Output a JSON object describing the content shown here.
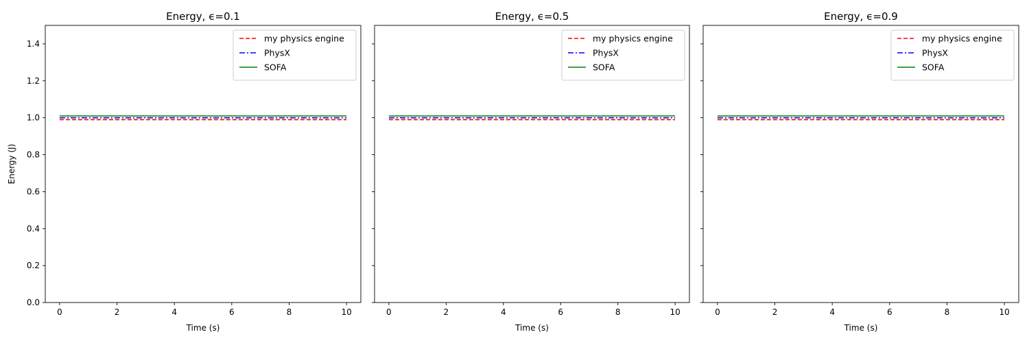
{
  "chart_data": [
    {
      "type": "line",
      "title": "Energy, ϵ=0.1",
      "xlabel": "Time (s)",
      "ylabel": "Energy (J)",
      "xlim": [
        -0.5,
        10.5
      ],
      "ylim": [
        0,
        1.5
      ],
      "xticks": [
        0,
        2,
        4,
        6,
        8,
        10
      ],
      "xtick_labels": [
        "0",
        "2",
        "4",
        "6",
        "8",
        "10"
      ],
      "yticks": [
        0.0,
        0.2,
        0.4,
        0.6,
        0.8,
        1.0,
        1.2,
        1.4
      ],
      "ytick_labels": [
        "0.0",
        "0.2",
        "0.4",
        "0.6",
        "0.8",
        "1.0",
        "1.2",
        "1.4"
      ],
      "show_yticklabels": true,
      "grid": false,
      "legend": "upper right",
      "series": [
        {
          "name": "my physics engine",
          "color": "#ff0000",
          "style": "dashed",
          "x": [
            0,
            10
          ],
          "y": [
            0.99,
            0.99
          ]
        },
        {
          "name": "PhysX",
          "color": "#0000ff",
          "style": "dashdot",
          "x": [
            0,
            10
          ],
          "y": [
            1.0,
            1.0
          ]
        },
        {
          "name": "SOFA",
          "color": "#008000",
          "style": "solid",
          "x": [
            0,
            10
          ],
          "y": [
            1.01,
            1.01
          ]
        }
      ]
    },
    {
      "type": "line",
      "title": "Energy, ϵ=0.5",
      "xlabel": "Time (s)",
      "ylabel": "",
      "xlim": [
        -0.5,
        10.5
      ],
      "ylim": [
        0,
        1.5
      ],
      "xticks": [
        0,
        2,
        4,
        6,
        8,
        10
      ],
      "xtick_labels": [
        "0",
        "2",
        "4",
        "6",
        "8",
        "10"
      ],
      "yticks": [
        0.0,
        0.2,
        0.4,
        0.6,
        0.8,
        1.0,
        1.2,
        1.4
      ],
      "ytick_labels": [],
      "show_yticklabels": false,
      "grid": false,
      "legend": "upper right",
      "series": [
        {
          "name": "my physics engine",
          "color": "#ff0000",
          "style": "dashed",
          "x": [
            0,
            10
          ],
          "y": [
            0.99,
            0.99
          ]
        },
        {
          "name": "PhysX",
          "color": "#0000ff",
          "style": "dashdot",
          "x": [
            0,
            10
          ],
          "y": [
            1.0,
            1.0
          ]
        },
        {
          "name": "SOFA",
          "color": "#008000",
          "style": "solid",
          "x": [
            0,
            10
          ],
          "y": [
            1.01,
            1.01
          ]
        }
      ]
    },
    {
      "type": "line",
      "title": "Energy, ϵ=0.9",
      "xlabel": "Time (s)",
      "ylabel": "",
      "xlim": [
        -0.5,
        10.5
      ],
      "ylim": [
        0,
        1.5
      ],
      "xticks": [
        0,
        2,
        4,
        6,
        8,
        10
      ],
      "xtick_labels": [
        "0",
        "2",
        "4",
        "6",
        "8",
        "10"
      ],
      "yticks": [
        0.0,
        0.2,
        0.4,
        0.6,
        0.8,
        1.0,
        1.2,
        1.4
      ],
      "ytick_labels": [],
      "show_yticklabels": false,
      "grid": false,
      "legend": "upper right",
      "series": [
        {
          "name": "my physics engine",
          "color": "#ff0000",
          "style": "dashed",
          "x": [
            0,
            10
          ],
          "y": [
            0.99,
            0.99
          ]
        },
        {
          "name": "PhysX",
          "color": "#0000ff",
          "style": "dashdot",
          "x": [
            0,
            10
          ],
          "y": [
            1.0,
            1.0
          ]
        },
        {
          "name": "SOFA",
          "color": "#008000",
          "style": "solid",
          "x": [
            0,
            10
          ],
          "y": [
            1.01,
            1.01
          ]
        }
      ]
    }
  ]
}
